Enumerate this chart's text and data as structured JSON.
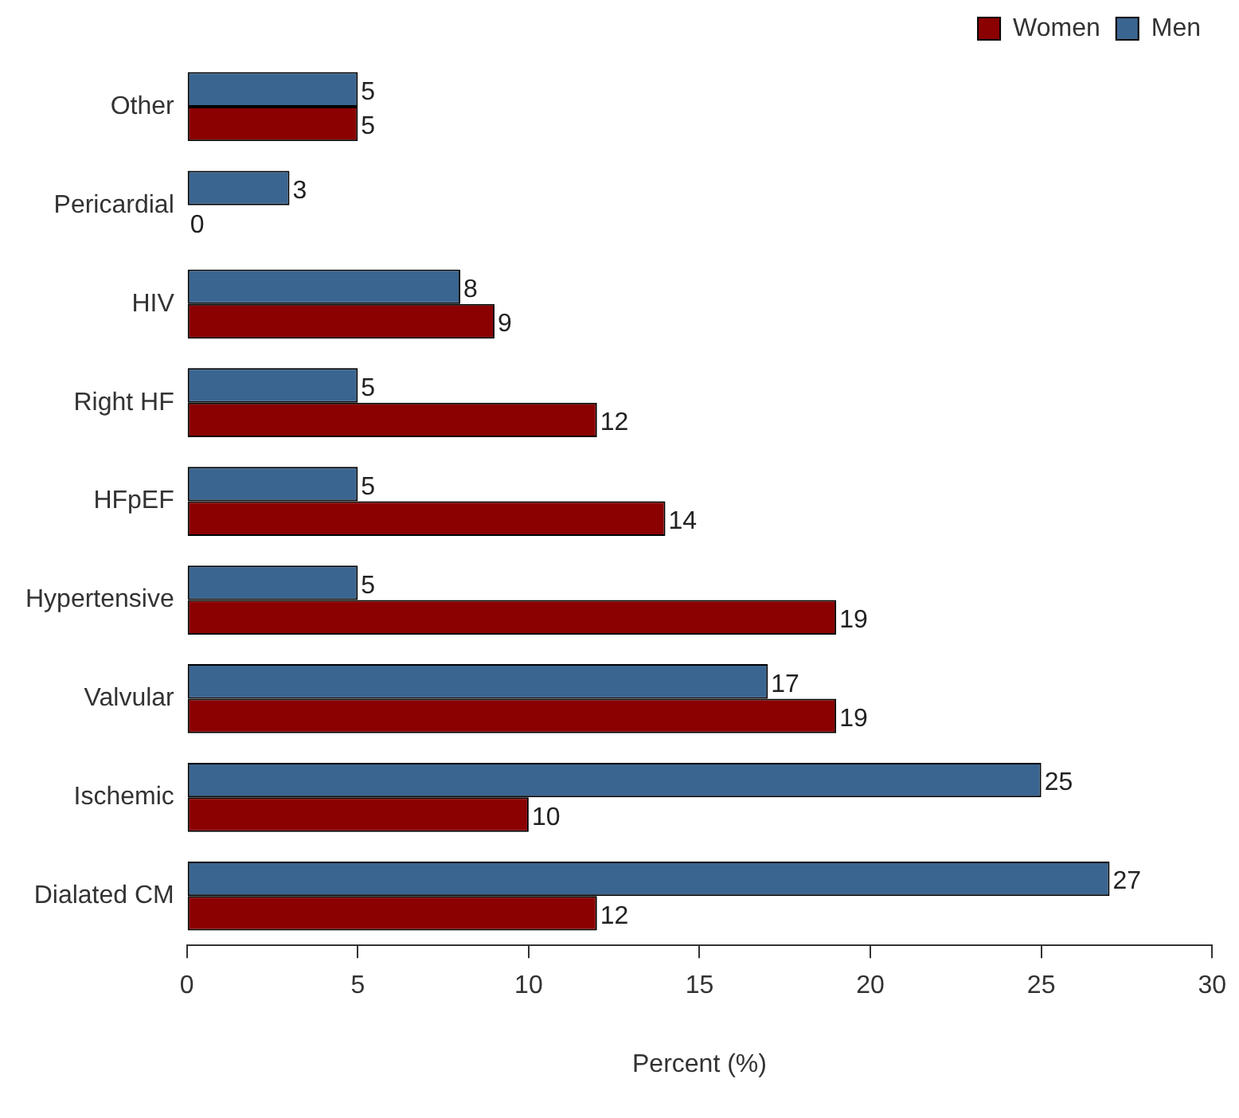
{
  "chart_data": {
    "type": "bar",
    "orientation": "horizontal",
    "xlabel": "Percent (%)",
    "categories": [
      "Other",
      "Pericardial",
      "HIV",
      "Right HF",
      "HFpEF",
      "Hypertensive",
      "Valvular",
      "Ischemic",
      "Dialated CM"
    ],
    "series": [
      {
        "name": "Men",
        "color": "#3b6591",
        "values": [
          5,
          3,
          8,
          5,
          5,
          5,
          17,
          25,
          27
        ]
      },
      {
        "name": "Women",
        "color": "#8b0000",
        "values": [
          5,
          0,
          9,
          12,
          14,
          19,
          19,
          10,
          12
        ]
      }
    ],
    "xlim": [
      0,
      30
    ],
    "xticks": [
      0,
      5,
      10,
      15,
      20,
      25,
      30
    ],
    "grid": false,
    "legend": "top right",
    "data_labels": true
  }
}
